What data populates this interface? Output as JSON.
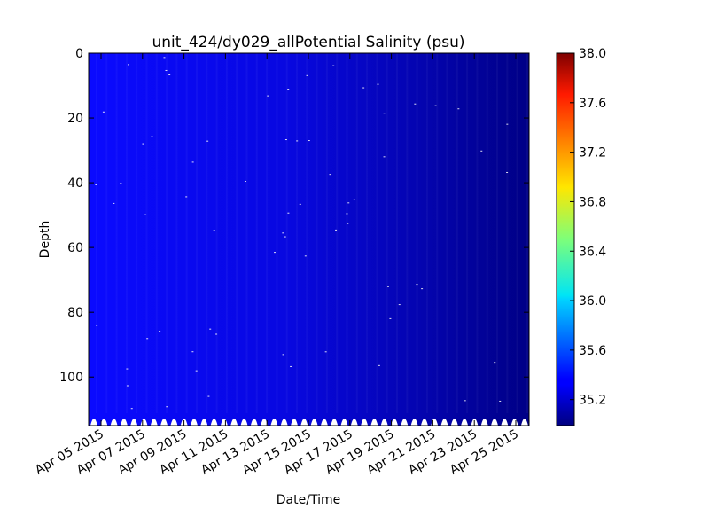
{
  "chart_data": {
    "type": "heatmap",
    "title": "unit_424/dy029_allPotential Salinity (psu)",
    "xlabel": "Date/Time",
    "ylabel": "Depth",
    "x_ticks": [
      "Apr 05 2015",
      "Apr 07 2015",
      "Apr 09 2015",
      "Apr 11 2015",
      "Apr 13 2015",
      "Apr 15 2015",
      "Apr 17 2015",
      "Apr 19 2015",
      "Apr 21 2015",
      "Apr 23 2015",
      "Apr 25 2015"
    ],
    "xlim": [
      "2015-04-04",
      "2015-04-25"
    ],
    "y_ticks": [
      0,
      20,
      40,
      60,
      80,
      100
    ],
    "ylim": [
      115,
      0
    ],
    "y_inverted": true,
    "colorbar": {
      "range": [
        34.99,
        38.0
      ],
      "ticks": [
        "35.2",
        "35.6",
        "36.0",
        "36.4",
        "36.8",
        "37.2",
        "37.6",
        "38.0"
      ],
      "colormap": "jet"
    },
    "series": [
      {
        "dates": [
          "2015-04-04",
          "2015-04-08",
          "2015-04-12",
          "2015-04-16",
          "2015-04-20",
          "2015-04-25"
        ],
        "salinity": [
          35.27,
          35.24,
          35.2,
          35.15,
          35.09,
          35.02
        ]
      }
    ],
    "grid": false,
    "colors": {
      "field_start": "#0000ff",
      "field_end": "#00007f"
    }
  }
}
